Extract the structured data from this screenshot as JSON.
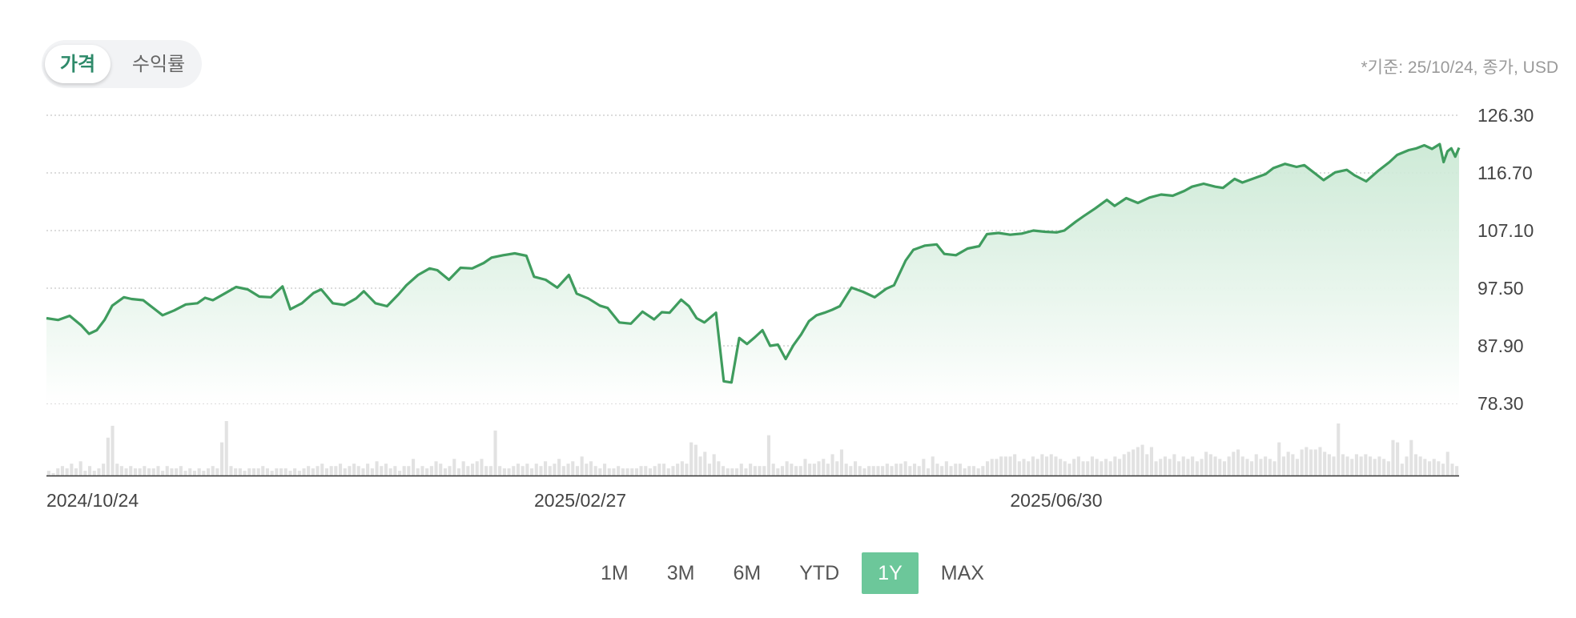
{
  "tabs": [
    {
      "label": "가격",
      "active": true
    },
    {
      "label": "수익률",
      "active": false
    }
  ],
  "basis_note": "*기준: 25/10/24, 종가, USD",
  "range_buttons": [
    {
      "label": "1M",
      "active": false
    },
    {
      "label": "3M",
      "active": false
    },
    {
      "label": "6M",
      "active": false
    },
    {
      "label": "YTD",
      "active": false
    },
    {
      "label": "1Y",
      "active": true
    },
    {
      "label": "MAX",
      "active": false
    }
  ],
  "colors": {
    "line": "#3f9c5e",
    "fill_top": "#c9e8d3",
    "fill_bottom": "#ffffff",
    "grid": "#c8c8c8",
    "volume": "#e2e2e2",
    "active_tab_text": "#2e8a6a",
    "active_range_bg": "#6cc79a"
  },
  "chart_data": {
    "type": "area",
    "y_ticks": [
      "126.30",
      "116.70",
      "107.10",
      "97.50",
      "87.90",
      "78.30"
    ],
    "ylim": [
      78.3,
      126.3
    ],
    "x_tick_labels": [
      "2024/10/24",
      "2025/02/27",
      "2025/06/30"
    ],
    "x_tick_dates": [
      "2024-10-24",
      "2025-02-27",
      "2025-06-30"
    ],
    "xlim": [
      "2024-10-24",
      "2025-10-24"
    ],
    "grid": true,
    "series": [
      {
        "type": "line",
        "points": [
          [
            "2024-10-24",
            92.5
          ],
          [
            "2024-10-27",
            92.2
          ],
          [
            "2024-10-30",
            92.9
          ],
          [
            "2024-11-02",
            91.3
          ],
          [
            "2024-11-04",
            89.9
          ],
          [
            "2024-11-06",
            90.5
          ],
          [
            "2024-11-08",
            92.2
          ],
          [
            "2024-11-10",
            94.6
          ],
          [
            "2024-11-13",
            96.0
          ],
          [
            "2024-11-15",
            95.7
          ],
          [
            "2024-11-18",
            95.5
          ],
          [
            "2024-11-21",
            94.0
          ],
          [
            "2024-11-23",
            93.0
          ],
          [
            "2024-11-26",
            93.8
          ],
          [
            "2024-11-29",
            94.8
          ],
          [
            "2024-12-02",
            95.0
          ],
          [
            "2024-12-04",
            95.9
          ],
          [
            "2024-12-06",
            95.5
          ],
          [
            "2024-12-09",
            96.6
          ],
          [
            "2024-12-12",
            97.7
          ],
          [
            "2024-12-15",
            97.3
          ],
          [
            "2024-12-18",
            96.1
          ],
          [
            "2024-12-21",
            96.0
          ],
          [
            "2024-12-24",
            97.8
          ],
          [
            "2024-12-26",
            94.0
          ],
          [
            "2024-12-29",
            95.0
          ],
          [
            "2025-01-01",
            96.7
          ],
          [
            "2025-01-03",
            97.3
          ],
          [
            "2025-01-06",
            95.0
          ],
          [
            "2025-01-09",
            94.7
          ],
          [
            "2025-01-12",
            95.8
          ],
          [
            "2025-01-14",
            97.0
          ],
          [
            "2025-01-17",
            95.0
          ],
          [
            "2025-01-20",
            94.5
          ],
          [
            "2025-01-23",
            96.5
          ],
          [
            "2025-01-25",
            98.0
          ],
          [
            "2025-01-28",
            99.7
          ],
          [
            "2025-01-31",
            100.8
          ],
          [
            "2025-02-02",
            100.5
          ],
          [
            "2025-02-05",
            98.9
          ],
          [
            "2025-02-08",
            100.9
          ],
          [
            "2025-02-11",
            100.8
          ],
          [
            "2025-02-14",
            101.7
          ],
          [
            "2025-02-16",
            102.6
          ],
          [
            "2025-02-19",
            103.0
          ],
          [
            "2025-02-22",
            103.3
          ],
          [
            "2025-02-25",
            102.9
          ],
          [
            "2025-02-27",
            99.4
          ],
          [
            "2025-03-02",
            98.9
          ],
          [
            "2025-03-05",
            97.6
          ],
          [
            "2025-03-08",
            99.7
          ],
          [
            "2025-03-10",
            96.6
          ],
          [
            "2025-03-13",
            95.8
          ],
          [
            "2025-03-16",
            94.6
          ],
          [
            "2025-03-18",
            94.2
          ],
          [
            "2025-03-21",
            91.8
          ],
          [
            "2025-03-24",
            91.6
          ],
          [
            "2025-03-27",
            93.6
          ],
          [
            "2025-03-30",
            92.3
          ],
          [
            "2025-04-01",
            93.5
          ],
          [
            "2025-04-03",
            93.4
          ],
          [
            "2025-04-06",
            95.6
          ],
          [
            "2025-04-08",
            94.5
          ],
          [
            "2025-04-10",
            92.5
          ],
          [
            "2025-04-12",
            91.8
          ],
          [
            "2025-04-15",
            93.4
          ],
          [
            "2025-04-17",
            82.0
          ],
          [
            "2025-04-19",
            81.8
          ],
          [
            "2025-04-21",
            89.2
          ],
          [
            "2025-04-23",
            88.2
          ],
          [
            "2025-04-25",
            89.3
          ],
          [
            "2025-04-27",
            90.5
          ],
          [
            "2025-04-29",
            87.9
          ],
          [
            "2025-05-01",
            88.1
          ],
          [
            "2025-05-03",
            85.7
          ],
          [
            "2025-05-05",
            88.0
          ],
          [
            "2025-05-07",
            89.8
          ],
          [
            "2025-05-09",
            92.0
          ],
          [
            "2025-05-11",
            93.0
          ],
          [
            "2025-05-13",
            93.4
          ],
          [
            "2025-05-15",
            93.9
          ],
          [
            "2025-05-17",
            94.5
          ],
          [
            "2025-05-20",
            97.6
          ],
          [
            "2025-05-23",
            96.9
          ],
          [
            "2025-05-26",
            96.0
          ],
          [
            "2025-05-29",
            97.4
          ],
          [
            "2025-05-31",
            98.0
          ],
          [
            "2025-06-03",
            102.1
          ],
          [
            "2025-06-05",
            103.9
          ],
          [
            "2025-06-08",
            104.6
          ],
          [
            "2025-06-11",
            104.8
          ],
          [
            "2025-06-13",
            103.2
          ],
          [
            "2025-06-16",
            103.0
          ],
          [
            "2025-06-19",
            104.1
          ],
          [
            "2025-06-22",
            104.5
          ],
          [
            "2025-06-24",
            106.5
          ],
          [
            "2025-06-27",
            106.7
          ],
          [
            "2025-06-30",
            106.4
          ],
          [
            "2025-07-03",
            106.6
          ],
          [
            "2025-07-06",
            107.1
          ],
          [
            "2025-07-09",
            106.9
          ],
          [
            "2025-07-12",
            106.8
          ],
          [
            "2025-07-14",
            107.1
          ],
          [
            "2025-07-17",
            108.6
          ],
          [
            "2025-07-19",
            109.5
          ],
          [
            "2025-07-22",
            110.8
          ],
          [
            "2025-07-25",
            112.2
          ],
          [
            "2025-07-27",
            111.2
          ],
          [
            "2025-07-30",
            112.5
          ],
          [
            "2025-08-02",
            111.7
          ],
          [
            "2025-08-05",
            112.6
          ],
          [
            "2025-08-08",
            113.1
          ],
          [
            "2025-08-11",
            112.9
          ],
          [
            "2025-08-14",
            113.7
          ],
          [
            "2025-08-16",
            114.4
          ],
          [
            "2025-08-19",
            114.9
          ],
          [
            "2025-08-22",
            114.4
          ],
          [
            "2025-08-24",
            114.2
          ],
          [
            "2025-08-27",
            115.7
          ],
          [
            "2025-08-29",
            115.1
          ],
          [
            "2025-09-01",
            115.8
          ],
          [
            "2025-09-04",
            116.5
          ],
          [
            "2025-09-06",
            117.5
          ],
          [
            "2025-09-09",
            118.2
          ],
          [
            "2025-09-12",
            117.7
          ],
          [
            "2025-09-14",
            118.0
          ],
          [
            "2025-09-17",
            116.5
          ],
          [
            "2025-09-19",
            115.5
          ],
          [
            "2025-09-22",
            116.8
          ],
          [
            "2025-09-25",
            117.2
          ],
          [
            "2025-09-27",
            116.3
          ],
          [
            "2025-09-30",
            115.3
          ],
          [
            "2025-10-03",
            117.0
          ],
          [
            "2025-10-06",
            118.5
          ],
          [
            "2025-10-08",
            119.7
          ],
          [
            "2025-10-11",
            120.5
          ],
          [
            "2025-10-13",
            120.8
          ],
          [
            "2025-10-15",
            121.3
          ],
          [
            "2025-10-17",
            120.7
          ],
          [
            "2025-10-19",
            121.5
          ],
          [
            "2025-10-20",
            118.5
          ],
          [
            "2025-10-21",
            120.3
          ],
          [
            "2025-10-22",
            120.8
          ],
          [
            "2025-10-23",
            119.4
          ],
          [
            "2025-10-24",
            120.9
          ]
        ]
      },
      {
        "type": "volume-bars",
        "values": [
          2,
          1,
          3,
          4,
          3,
          5,
          3,
          6,
          2,
          4,
          2,
          3,
          5,
          16,
          21,
          5,
          4,
          3,
          4,
          3,
          3,
          4,
          3,
          3,
          4,
          2,
          4,
          3,
          3,
          4,
          2,
          3,
          2,
          3,
          2,
          3,
          4,
          3,
          14,
          23,
          4,
          3,
          3,
          2,
          3,
          3,
          3,
          4,
          3,
          2,
          3,
          3,
          3,
          2,
          3,
          2,
          3,
          4,
          3,
          4,
          5,
          3,
          4,
          4,
          5,
          3,
          4,
          5,
          4,
          3,
          5,
          3,
          6,
          4,
          5,
          3,
          4,
          2,
          4,
          4,
          7,
          3,
          4,
          3,
          4,
          6,
          5,
          3,
          4,
          7,
          3,
          6,
          4,
          5,
          6,
          7,
          4,
          4,
          19,
          4,
          3,
          3,
          4,
          5,
          4,
          5,
          3,
          5,
          4,
          6,
          4,
          5,
          7,
          4,
          5,
          6,
          4,
          8,
          5,
          6,
          4,
          3,
          5,
          3,
          3,
          4,
          3,
          3,
          3,
          3,
          4,
          4,
          3,
          4,
          5,
          5,
          3,
          4,
          5,
          6,
          5,
          14,
          13,
          8,
          10,
          5,
          9,
          6,
          4,
          3,
          3,
          3,
          5,
          3,
          5,
          4,
          4,
          4,
          17,
          5,
          3,
          4,
          6,
          5,
          4,
          4,
          7,
          5,
          5,
          6,
          7,
          5,
          9,
          6,
          11,
          5,
          4,
          6,
          4,
          3,
          4,
          4,
          4,
          4,
          5,
          4,
          5,
          5,
          6,
          4,
          5,
          4,
          7,
          3,
          8,
          5,
          4,
          6,
          4,
          5,
          5,
          3,
          4,
          4,
          3,
          4,
          6,
          7,
          7,
          8,
          8,
          8,
          9,
          6,
          7,
          6,
          8,
          7,
          9,
          8,
          9,
          8,
          7,
          6,
          5,
          7,
          8,
          6,
          6,
          8,
          7,
          6,
          7,
          6,
          8,
          7,
          9,
          10,
          11,
          12,
          13,
          9,
          12,
          6,
          7,
          8,
          7,
          9,
          6,
          8,
          7,
          8,
          6,
          7,
          10,
          9,
          8,
          7,
          6,
          8,
          10,
          11,
          8,
          7,
          6,
          9,
          7,
          8,
          7,
          6,
          14,
          8,
          10,
          9,
          7,
          11,
          12,
          11,
          11,
          12,
          10,
          9,
          8,
          22,
          9,
          8,
          7,
          9,
          8,
          9,
          8,
          7,
          8,
          7,
          6,
          15,
          14,
          5,
          8,
          15,
          9,
          8,
          7,
          6,
          7,
          6,
          5,
          10,
          5,
          4
        ]
      }
    ]
  }
}
